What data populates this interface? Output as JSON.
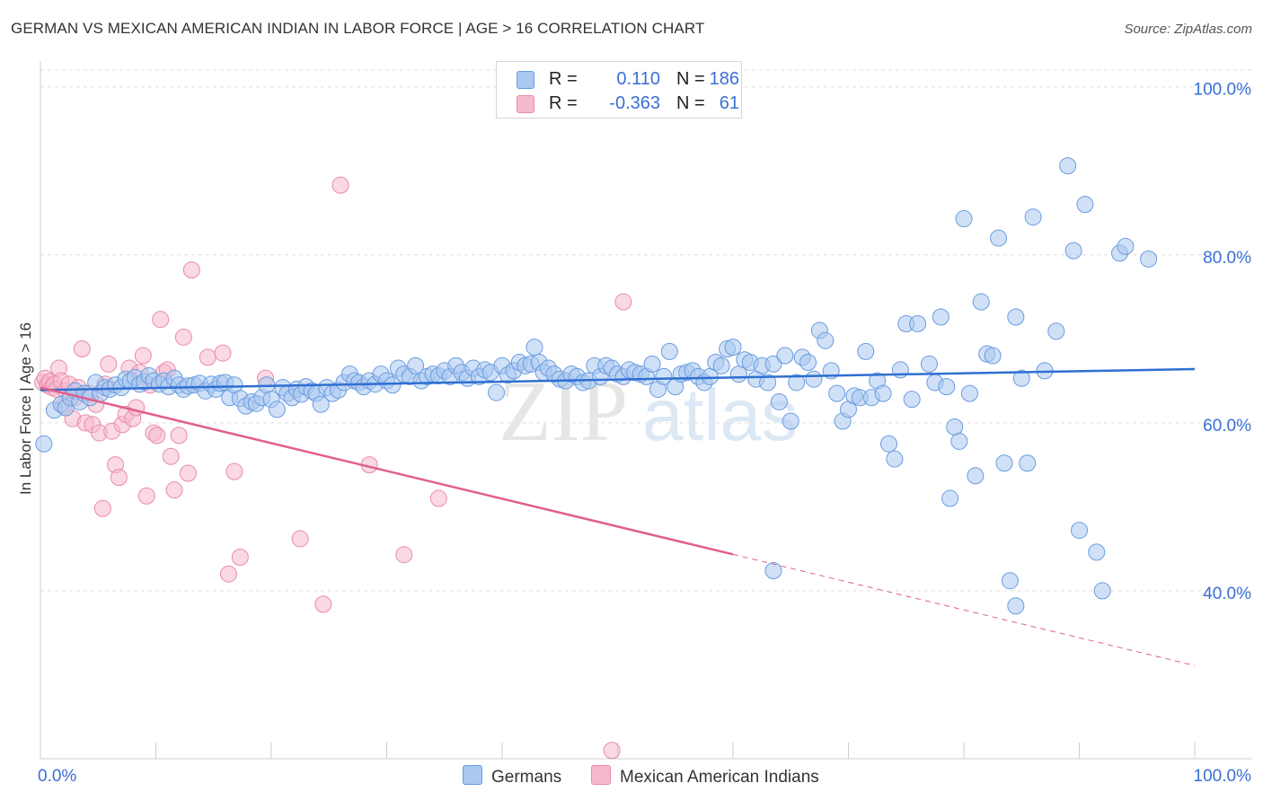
{
  "title": "GERMAN VS MEXICAN AMERICAN INDIAN IN LABOR FORCE | AGE > 16 CORRELATION CHART",
  "source": "Source: ZipAtlas.com",
  "watermark": {
    "zip": "ZIP",
    "atlas": "atlas"
  },
  "colors": {
    "blue_fill": "#aac8f0",
    "blue_stroke": "#6a9be0",
    "blue_line": "#2f6fd0",
    "pink_fill": "#f6b9cc",
    "pink_stroke": "#ea8aaa",
    "pink_line": "#e0608c",
    "axis_text": "#3a6fd4",
    "grid": "#dddddd"
  },
  "legend": {
    "rows": [
      {
        "r_label": "R =",
        "r_value": "0.110",
        "n_label": "N =",
        "n_value": "186"
      },
      {
        "r_label": "R =",
        "r_value": "-0.363",
        "n_label": "N =",
        "n_value": "61"
      }
    ],
    "bottom": [
      "Germans",
      "Mexican American Indians"
    ]
  },
  "chart_data": {
    "type": "scatter",
    "title": "GERMAN VS MEXICAN AMERICAN INDIAN IN LABOR FORCE | AGE > 16 CORRELATION CHART",
    "xlabel": "",
    "ylabel": "In Labor Force | Age > 16",
    "x_tick_labels": [
      "0.0%",
      "100.0%"
    ],
    "y_tick_labels": [
      "100.0%",
      "80.0%",
      "60.0%",
      "40.0%"
    ],
    "y_ticks": [
      100,
      80,
      60,
      40
    ],
    "xlim": [
      0,
      100
    ],
    "ylim": [
      20,
      102
    ],
    "grid": true,
    "legend_position": "top-center",
    "series": [
      {
        "name": "Germans",
        "r": 0.11,
        "n": 186,
        "trend": {
          "x": [
            0,
            100
          ],
          "y": [
            63.9,
            66.4
          ],
          "dashed_from": null
        },
        "points": [
          [
            0.3,
            57.5
          ],
          [
            1.2,
            61.5
          ],
          [
            1.8,
            62.2
          ],
          [
            2.2,
            61.8
          ],
          [
            2.6,
            63.0
          ],
          [
            3.0,
            63.8
          ],
          [
            3.4,
            62.5
          ],
          [
            3.8,
            63.5
          ],
          [
            4.3,
            63.0
          ],
          [
            4.8,
            64.8
          ],
          [
            5.2,
            63.5
          ],
          [
            5.6,
            64.2
          ],
          [
            6.0,
            64.0
          ],
          [
            6.5,
            64.5
          ],
          [
            7.0,
            64.2
          ],
          [
            7.4,
            65.2
          ],
          [
            7.8,
            65.0
          ],
          [
            8.2,
            65.4
          ],
          [
            8.6,
            64.6
          ],
          [
            9.0,
            64.9
          ],
          [
            9.4,
            65.6
          ],
          [
            9.8,
            65.0
          ],
          [
            10.3,
            64.6
          ],
          [
            10.7,
            65.0
          ],
          [
            11.1,
            64.3
          ],
          [
            11.6,
            65.3
          ],
          [
            12.0,
            64.5
          ],
          [
            12.4,
            64.0
          ],
          [
            12.8,
            64.4
          ],
          [
            13.3,
            64.5
          ],
          [
            13.8,
            64.7
          ],
          [
            14.3,
            63.8
          ],
          [
            14.8,
            64.6
          ],
          [
            15.2,
            64.0
          ],
          [
            15.6,
            64.7
          ],
          [
            16.0,
            64.8
          ],
          [
            16.4,
            63.0
          ],
          [
            16.8,
            64.5
          ],
          [
            17.3,
            62.9
          ],
          [
            17.8,
            62.0
          ],
          [
            18.3,
            62.5
          ],
          [
            18.7,
            62.3
          ],
          [
            19.2,
            63.0
          ],
          [
            19.6,
            64.5
          ],
          [
            20.0,
            62.8
          ],
          [
            20.5,
            61.6
          ],
          [
            21.0,
            64.2
          ],
          [
            21.4,
            63.5
          ],
          [
            21.8,
            63.0
          ],
          [
            22.2,
            64.0
          ],
          [
            22.6,
            63.4
          ],
          [
            23.0,
            64.3
          ],
          [
            23.5,
            63.8
          ],
          [
            23.9,
            63.5
          ],
          [
            24.3,
            62.2
          ],
          [
            24.8,
            64.2
          ],
          [
            25.3,
            63.5
          ],
          [
            25.8,
            63.9
          ],
          [
            26.3,
            64.8
          ],
          [
            26.8,
            65.8
          ],
          [
            27.2,
            65.0
          ],
          [
            27.6,
            64.8
          ],
          [
            28.0,
            64.3
          ],
          [
            28.5,
            65.0
          ],
          [
            29.0,
            64.6
          ],
          [
            29.5,
            65.8
          ],
          [
            30.0,
            65.0
          ],
          [
            30.5,
            64.5
          ],
          [
            31.0,
            66.5
          ],
          [
            31.5,
            65.8
          ],
          [
            32.0,
            65.5
          ],
          [
            32.5,
            66.8
          ],
          [
            33.0,
            65.0
          ],
          [
            33.5,
            65.5
          ],
          [
            34.0,
            65.8
          ],
          [
            34.5,
            65.6
          ],
          [
            35.0,
            66.2
          ],
          [
            35.5,
            65.5
          ],
          [
            36.0,
            66.8
          ],
          [
            36.5,
            66.0
          ],
          [
            37.0,
            65.3
          ],
          [
            37.5,
            66.5
          ],
          [
            38.0,
            65.5
          ],
          [
            38.5,
            66.3
          ],
          [
            39.0,
            66.0
          ],
          [
            39.5,
            63.6
          ],
          [
            40.0,
            66.8
          ],
          [
            40.5,
            65.7
          ],
          [
            41.0,
            66.2
          ],
          [
            41.5,
            67.2
          ],
          [
            42.0,
            66.8
          ],
          [
            42.5,
            67.0
          ],
          [
            42.8,
            69.0
          ],
          [
            43.2,
            67.2
          ],
          [
            43.6,
            66.0
          ],
          [
            44.0,
            66.5
          ],
          [
            44.5,
            65.8
          ],
          [
            45.0,
            65.2
          ],
          [
            45.5,
            65.0
          ],
          [
            46.0,
            65.8
          ],
          [
            46.5,
            65.5
          ],
          [
            47.0,
            64.8
          ],
          [
            47.5,
            65.0
          ],
          [
            48.0,
            66.8
          ],
          [
            48.5,
            65.5
          ],
          [
            49.0,
            66.8
          ],
          [
            49.5,
            66.5
          ],
          [
            50.0,
            65.8
          ],
          [
            50.5,
            65.5
          ],
          [
            51.0,
            66.3
          ],
          [
            51.5,
            66.0
          ],
          [
            52.0,
            65.8
          ],
          [
            52.5,
            65.5
          ],
          [
            53.0,
            67.0
          ],
          [
            53.5,
            64.0
          ],
          [
            54.0,
            65.5
          ],
          [
            54.5,
            68.5
          ],
          [
            55.0,
            64.3
          ],
          [
            55.5,
            65.8
          ],
          [
            56.0,
            66.0
          ],
          [
            56.5,
            66.2
          ],
          [
            57.0,
            65.5
          ],
          [
            57.5,
            64.8
          ],
          [
            58.0,
            65.5
          ],
          [
            58.5,
            67.2
          ],
          [
            59.0,
            66.8
          ],
          [
            59.5,
            68.8
          ],
          [
            60.0,
            69.0
          ],
          [
            60.5,
            65.8
          ],
          [
            61.0,
            67.5
          ],
          [
            61.5,
            67.2
          ],
          [
            62.0,
            65.2
          ],
          [
            62.5,
            66.8
          ],
          [
            63.0,
            64.8
          ],
          [
            63.5,
            67.0
          ],
          [
            64.0,
            62.5
          ],
          [
            64.5,
            68.0
          ],
          [
            65.0,
            60.2
          ],
          [
            65.5,
            64.8
          ],
          [
            66.0,
            67.8
          ],
          [
            66.5,
            67.2
          ],
          [
            67.0,
            65.2
          ],
          [
            67.5,
            71.0
          ],
          [
            68.0,
            69.8
          ],
          [
            68.5,
            66.2
          ],
          [
            69.0,
            63.5
          ],
          [
            69.5,
            60.2
          ],
          [
            70.0,
            61.6
          ],
          [
            70.5,
            63.2
          ],
          [
            71.0,
            63.0
          ],
          [
            71.5,
            68.5
          ],
          [
            72.0,
            63.0
          ],
          [
            72.5,
            65.0
          ],
          [
            73.0,
            63.5
          ],
          [
            73.5,
            57.5
          ],
          [
            74.0,
            55.7
          ],
          [
            74.5,
            66.3
          ],
          [
            75.0,
            71.8
          ],
          [
            75.5,
            62.8
          ],
          [
            76.0,
            71.8
          ],
          [
            77.0,
            67.0
          ],
          [
            77.5,
            64.8
          ],
          [
            78.0,
            72.6
          ],
          [
            78.5,
            64.3
          ],
          [
            79.2,
            59.5
          ],
          [
            79.6,
            57.8
          ],
          [
            80.0,
            84.3
          ],
          [
            80.5,
            63.5
          ],
          [
            81.0,
            53.7
          ],
          [
            81.5,
            74.4
          ],
          [
            82.0,
            68.2
          ],
          [
            82.5,
            68.0
          ],
          [
            83.0,
            82.0
          ],
          [
            83.5,
            55.2
          ],
          [
            84.5,
            72.6
          ],
          [
            85.0,
            65.3
          ],
          [
            85.5,
            55.2
          ],
          [
            86.0,
            84.5
          ],
          [
            87.0,
            66.2
          ],
          [
            88.0,
            70.9
          ],
          [
            89.0,
            90.6
          ],
          [
            89.5,
            80.5
          ],
          [
            90.0,
            47.2
          ],
          [
            90.5,
            86.0
          ],
          [
            91.5,
            44.6
          ],
          [
            92.0,
            40.0
          ],
          [
            93.5,
            80.2
          ],
          [
            94.0,
            81.0
          ],
          [
            96.0,
            79.5
          ],
          [
            63.5,
            42.4
          ],
          [
            84.0,
            41.2
          ],
          [
            84.5,
            38.2
          ],
          [
            78.8,
            51.0
          ]
        ]
      },
      {
        "name": "Mexican American Indians",
        "r": -0.363,
        "n": 61,
        "trend": {
          "x": [
            0,
            100
          ],
          "y": [
            64.2,
            31.1
          ],
          "dashed_from": 60
        },
        "points": [
          [
            0.2,
            64.8
          ],
          [
            0.4,
            65.3
          ],
          [
            0.6,
            64.5
          ],
          [
            0.8,
            64.9
          ],
          [
            1.0,
            64.2
          ],
          [
            1.2,
            64.6
          ],
          [
            1.4,
            64.0
          ],
          [
            1.6,
            66.5
          ],
          [
            1.8,
            65.0
          ],
          [
            2.0,
            62.0
          ],
          [
            2.2,
            63.8
          ],
          [
            2.5,
            64.6
          ],
          [
            2.8,
            60.5
          ],
          [
            3.0,
            63.0
          ],
          [
            3.3,
            64.2
          ],
          [
            3.6,
            68.8
          ],
          [
            3.9,
            60.0
          ],
          [
            4.2,
            63.5
          ],
          [
            4.5,
            59.8
          ],
          [
            4.8,
            62.2
          ],
          [
            5.1,
            58.8
          ],
          [
            5.4,
            49.8
          ],
          [
            5.6,
            64.6
          ],
          [
            5.9,
            67.0
          ],
          [
            6.2,
            59.0
          ],
          [
            6.5,
            55.0
          ],
          [
            6.8,
            53.5
          ],
          [
            7.1,
            59.8
          ],
          [
            7.4,
            61.0
          ],
          [
            7.7,
            66.5
          ],
          [
            8.0,
            60.5
          ],
          [
            8.3,
            61.8
          ],
          [
            8.6,
            66.0
          ],
          [
            8.9,
            68.0
          ],
          [
            9.2,
            51.3
          ],
          [
            9.5,
            64.5
          ],
          [
            9.8,
            58.8
          ],
          [
            10.1,
            58.5
          ],
          [
            10.4,
            72.3
          ],
          [
            10.7,
            66.0
          ],
          [
            11.0,
            66.3
          ],
          [
            11.3,
            56.0
          ],
          [
            11.6,
            52.0
          ],
          [
            12.0,
            58.5
          ],
          [
            12.4,
            70.2
          ],
          [
            12.8,
            54.0
          ],
          [
            13.1,
            78.2
          ],
          [
            14.5,
            67.8
          ],
          [
            15.8,
            68.3
          ],
          [
            16.3,
            42.0
          ],
          [
            16.8,
            54.2
          ],
          [
            17.3,
            44.0
          ],
          [
            19.5,
            65.3
          ],
          [
            22.5,
            46.2
          ],
          [
            24.5,
            38.4
          ],
          [
            26.0,
            88.3
          ],
          [
            28.5,
            55.0
          ],
          [
            31.5,
            44.3
          ],
          [
            34.5,
            51.0
          ],
          [
            49.5,
            21.0
          ],
          [
            50.5,
            74.4
          ]
        ]
      }
    ]
  }
}
